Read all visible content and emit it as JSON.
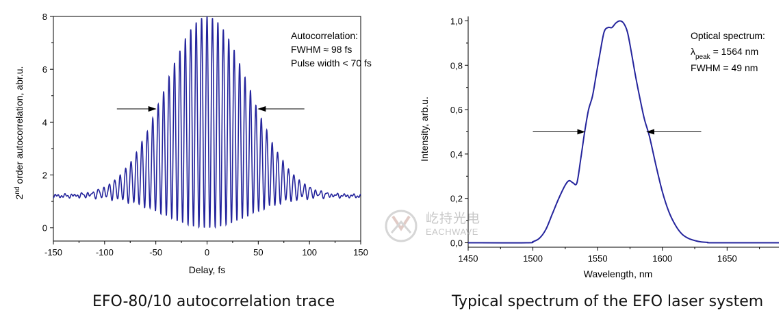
{
  "charts": [
    {
      "type": "line",
      "xlabel": "Delay, fs",
      "ylabel_main": "order autocorrelation, abr.u.",
      "ylabel_prefix": "2",
      "ylabel_sup": "nd",
      "xlim": [
        -150,
        150
      ],
      "ylim": [
        -0.5,
        8
      ],
      "xticks": [
        -150,
        -100,
        -50,
        0,
        50,
        100,
        150
      ],
      "yticks": [
        0,
        2,
        4,
        6,
        8
      ],
      "annotation": [
        "Autocorrelation:",
        "FWHM ≈ 98 fs",
        "Pulse width < 70 fs"
      ],
      "arrows": [
        {
          "from_x": -88,
          "to_x": -50,
          "y": 4.5
        },
        {
          "from_x": 95,
          "to_x": 50,
          "y": 4.5
        }
      ],
      "series_color": "#24249c",
      "model": {
        "baseline": 1.2,
        "peak": 8,
        "envelope_sigma_fs": 41,
        "fringe_period_fs": 5.3,
        "noise_amplitude": 0.08
      }
    },
    {
      "type": "line",
      "xlabel": "Wavelength, nm",
      "ylabel": "Intensity, arb.u.",
      "xlim": [
        1450,
        1690
      ],
      "ylim": [
        -0.02,
        1.02
      ],
      "xticks": [
        1450,
        1500,
        1550,
        1600,
        1650
      ],
      "yticks": [
        "0,0",
        "0,2",
        "0,4",
        "0,6",
        "0,8",
        "1,0"
      ],
      "ytick_values": [
        0,
        0.2,
        0.4,
        0.6,
        0.8,
        1.0
      ],
      "annotation": {
        "title": "Optical spectrum:",
        "lambda": "λ",
        "lambda_sub": "peak",
        "peak_rest": " = 1564 nm",
        "fwhm": "FWHM = 49 nm"
      },
      "arrows": [
        {
          "from_x": 1500,
          "to_x": 1540,
          "y": 0.5
        },
        {
          "from_x": 1630,
          "to_x": 1588,
          "y": 0.5
        }
      ],
      "series_color": "#24249c",
      "x": [
        1450,
        1495,
        1500,
        1505,
        1510,
        1515,
        1520,
        1525,
        1528,
        1531,
        1534,
        1537,
        1540,
        1543,
        1546,
        1549,
        1552,
        1555,
        1558,
        1561,
        1564,
        1567,
        1570,
        1573,
        1576,
        1579,
        1582,
        1586,
        1590,
        1595,
        1600,
        1605,
        1610,
        1615,
        1620,
        1625,
        1630,
        1635,
        1640,
        1690
      ],
      "y": [
        0,
        0,
        0.005,
        0.02,
        0.06,
        0.13,
        0.2,
        0.26,
        0.28,
        0.27,
        0.27,
        0.38,
        0.5,
        0.6,
        0.66,
        0.76,
        0.86,
        0.95,
        0.97,
        0.97,
        0.99,
        1.0,
        0.99,
        0.95,
        0.86,
        0.76,
        0.67,
        0.56,
        0.48,
        0.35,
        0.23,
        0.14,
        0.08,
        0.04,
        0.02,
        0.01,
        0.004,
        0.002,
        0,
        0
      ]
    }
  ],
  "captions": [
    "EFO-80/10 autocorrelation trace",
    "Typical spectrum of the EFO laser system"
  ],
  "watermark": {
    "cn": "屹持光电",
    "en": "EACHWAVE"
  }
}
